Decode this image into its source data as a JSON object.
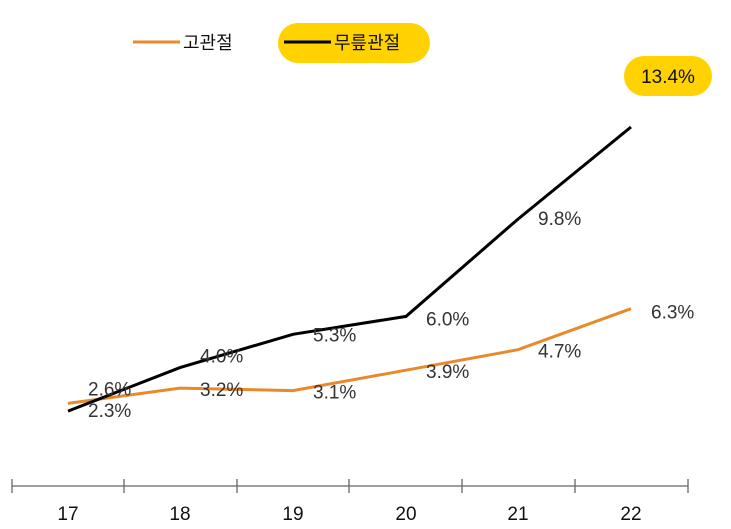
{
  "chart_data": {
    "type": "line",
    "categories": [
      "17",
      "18",
      "19",
      "20",
      "21",
      "22"
    ],
    "series": [
      {
        "name": "고관절",
        "color": "#E8892B",
        "values": [
          2.6,
          3.2,
          3.1,
          3.9,
          4.7,
          6.3
        ],
        "labels": [
          "2.6%",
          "3.2%",
          "3.1%",
          "3.9%",
          "4.7%",
          "6.3%"
        ]
      },
      {
        "name": "무릎관절",
        "color": "#000000",
        "values": [
          2.3,
          4.0,
          5.3,
          6.0,
          9.8,
          13.4
        ],
        "labels": [
          "2.3%",
          "4.0%",
          "5.3%",
          "6.0%",
          "9.8%",
          "13.4%"
        ]
      }
    ],
    "ylim": [
      0,
      14.5
    ],
    "grid": false,
    "legend": "top-left",
    "highlight_color": "#FFD200"
  }
}
